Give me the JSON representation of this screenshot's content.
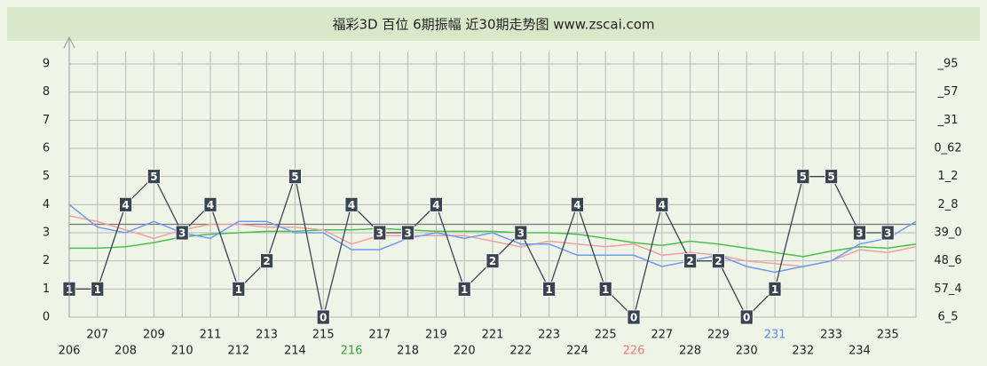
{
  "chart_data": {
    "type": "line",
    "title": "福彩3D 百位 6期振幅 近30期走势图 www.zscai.com",
    "categories": [
      "206",
      "207",
      "208",
      "209",
      "210",
      "211",
      "212",
      "213",
      "214",
      "215",
      "216",
      "217",
      "218",
      "219",
      "220",
      "221",
      "222",
      "223",
      "224",
      "225",
      "226",
      "227",
      "228",
      "229",
      "230",
      "231",
      "232",
      "233",
      "234",
      "235",
      null
    ],
    "category_colors": [
      null,
      null,
      null,
      null,
      null,
      null,
      null,
      null,
      null,
      null,
      "#33aa33",
      null,
      null,
      null,
      null,
      null,
      null,
      null,
      null,
      null,
      "#f07a7a",
      null,
      null,
      null,
      null,
      "#5a8cf0",
      null,
      null,
      null,
      null,
      null
    ],
    "series": [
      {
        "color": "#3a4450",
        "values": [
          1,
          1,
          4,
          5,
          3,
          4,
          1,
          2,
          5,
          0,
          4,
          3,
          3,
          4,
          1,
          2,
          3,
          1,
          4,
          1,
          0,
          4,
          2,
          2,
          0,
          1,
          5,
          5,
          3,
          3,
          null
        ]
      },
      {
        "color": "#6e9cf2",
        "values": [
          4.0,
          3.2,
          3.0,
          3.4,
          3.0,
          2.8,
          3.4,
          3.4,
          3.0,
          3.0,
          2.4,
          2.4,
          2.8,
          3.0,
          2.8,
          3.0,
          2.6,
          2.6,
          2.2,
          2.2,
          2.2,
          1.8,
          2.0,
          2.2,
          1.8,
          1.6,
          1.8,
          2.0,
          2.6,
          2.8,
          3.4
        ]
      },
      {
        "color": "#f2a0a0",
        "values": [
          3.6,
          3.4,
          3.1,
          2.8,
          3.1,
          3.3,
          3.3,
          3.2,
          3.2,
          3.1,
          2.6,
          2.9,
          2.9,
          2.9,
          2.9,
          2.7,
          2.5,
          2.7,
          2.6,
          2.5,
          2.6,
          2.2,
          2.3,
          2.2,
          2.0,
          1.9,
          1.8,
          2.0,
          2.4,
          2.3,
          2.5
        ]
      },
      {
        "color": "#4cc04c",
        "values": [
          2.45,
          2.45,
          2.5,
          2.65,
          2.85,
          2.95,
          3.0,
          3.05,
          3.05,
          3.1,
          3.1,
          3.15,
          3.1,
          3.05,
          3.05,
          3.05,
          3.0,
          3.0,
          2.95,
          2.8,
          2.65,
          2.55,
          2.7,
          2.6,
          2.45,
          2.3,
          2.15,
          2.35,
          2.5,
          2.45,
          2.6
        ]
      }
    ],
    "reference_line": 3.3,
    "ylim": [
      0,
      9
    ],
    "yticks": [
      0,
      1,
      2,
      3,
      4,
      5,
      6,
      7,
      8,
      9
    ],
    "y2lim": [
      0,
      9
    ],
    "y2ticks": [
      {
        "value": 0,
        "label": "6_5"
      },
      {
        "value": 1,
        "label": "57_4"
      },
      {
        "value": 2,
        "label": "48_6"
      },
      {
        "value": 3,
        "label": "39_0"
      },
      {
        "value": 4,
        "label": "2_8"
      },
      {
        "value": 5,
        "label": "1_2"
      },
      {
        "value": 6,
        "label": "0_62"
      },
      {
        "value": 7,
        "label": "_31"
      },
      {
        "value": 8,
        "label": "_57"
      },
      {
        "value": 9,
        "label": "_95"
      }
    ],
    "grid": true
  }
}
